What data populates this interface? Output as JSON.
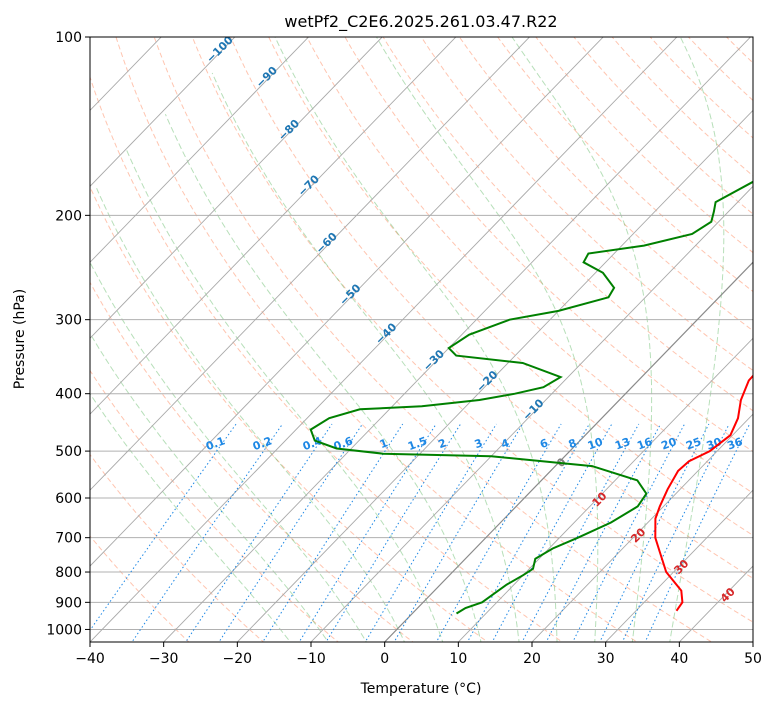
{
  "chart_data": {
    "type": "skew-t",
    "title": "wetPf2_C2E6.2025.261.03.47.R22",
    "xlabel": "Temperature (°C)",
    "ylabel": "Pressure (hPa)",
    "xlim": [
      -40,
      50
    ],
    "ylim": [
      1050,
      100
    ],
    "x_ticks": [
      -40,
      -30,
      -20,
      -10,
      0,
      10,
      20,
      30,
      40,
      50
    ],
    "x_tick_labels": [
      "−40",
      "−30",
      "−20",
      "−10",
      "0",
      "10",
      "20",
      "30",
      "40",
      "50"
    ],
    "y_ticks": [
      100,
      200,
      300,
      400,
      500,
      600,
      700,
      800,
      900,
      1000
    ],
    "y_tick_labels": [
      "100",
      "200",
      "300",
      "400",
      "500",
      "600",
      "700",
      "800",
      "900",
      "1000"
    ],
    "temperature_color": "#ff0000",
    "dewpoint_color": "#008000",
    "temperature": [
      {
        "p": 930,
        "t": 35.5
      },
      {
        "p": 900,
        "t": 35.2
      },
      {
        "p": 860,
        "t": 33.5
      },
      {
        "p": 800,
        "t": 29.0
      },
      {
        "p": 740,
        "t": 25.5
      },
      {
        "p": 700,
        "t": 23.0
      },
      {
        "p": 650,
        "t": 20.5
      },
      {
        "p": 620,
        "t": 19.5
      },
      {
        "p": 580,
        "t": 18.3
      },
      {
        "p": 540,
        "t": 17.3
      },
      {
        "p": 520,
        "t": 17.5
      },
      {
        "p": 500,
        "t": 19.0
      },
      {
        "p": 470,
        "t": 19.7
      },
      {
        "p": 440,
        "t": 18.5
      },
      {
        "p": 410,
        "t": 16.5
      },
      {
        "p": 380,
        "t": 15.0
      },
      {
        "p": 350,
        "t": 14.8
      },
      {
        "p": 320,
        "t": 14.0
      },
      {
        "p": 300,
        "t": 12.0
      },
      {
        "p": 270,
        "t": 10.5
      },
      {
        "p": 240,
        "t": 9.5
      },
      {
        "p": 220,
        "t": 8.0
      },
      {
        "p": 200,
        "t": 5.5
      },
      {
        "p": 180,
        "t": 4.5
      },
      {
        "p": 160,
        "t": 2.5
      },
      {
        "p": 140,
        "t": 0.0
      },
      {
        "p": 125,
        "t": -0.5
      },
      {
        "p": 110,
        "t": 1.5
      },
      {
        "p": 100,
        "t": 3.5
      }
    ],
    "dewpoint": [
      {
        "p": 940,
        "t": 6.0
      },
      {
        "p": 920,
        "t": 6.5
      },
      {
        "p": 900,
        "t": 8.0
      },
      {
        "p": 870,
        "t": 8.5
      },
      {
        "p": 840,
        "t": 9.0
      },
      {
        "p": 810,
        "t": 10.0
      },
      {
        "p": 790,
        "t": 10.5
      },
      {
        "p": 760,
        "t": 9.5
      },
      {
        "p": 730,
        "t": 10.5
      },
      {
        "p": 700,
        "t": 12.5
      },
      {
        "p": 660,
        "t": 15.0
      },
      {
        "p": 620,
        "t": 16.5
      },
      {
        "p": 590,
        "t": 16.0
      },
      {
        "p": 560,
        "t": 13.0
      },
      {
        "p": 530,
        "t": 5.0
      },
      {
        "p": 510,
        "t": -10.0
      },
      {
        "p": 505,
        "t": -25.0
      },
      {
        "p": 495,
        "t": -32.0
      },
      {
        "p": 480,
        "t": -36.0
      },
      {
        "p": 460,
        "t": -38.0
      },
      {
        "p": 440,
        "t": -37.0
      },
      {
        "p": 425,
        "t": -34.0
      },
      {
        "p": 420,
        "t": -26.0
      },
      {
        "p": 410,
        "t": -19.0
      },
      {
        "p": 400,
        "t": -15.0
      },
      {
        "p": 390,
        "t": -12.0
      },
      {
        "p": 375,
        "t": -11.0
      },
      {
        "p": 355,
        "t": -18.0
      },
      {
        "p": 345,
        "t": -28.0
      },
      {
        "p": 335,
        "t": -30.0
      },
      {
        "p": 318,
        "t": -29.0
      },
      {
        "p": 300,
        "t": -25.5
      },
      {
        "p": 290,
        "t": -20.0
      },
      {
        "p": 275,
        "t": -15.0
      },
      {
        "p": 265,
        "t": -15.5
      },
      {
        "p": 250,
        "t": -19.0
      },
      {
        "p": 240,
        "t": -23.0
      },
      {
        "p": 232,
        "t": -23.5
      },
      {
        "p": 225,
        "t": -17.0
      },
      {
        "p": 215,
        "t": -12.0
      },
      {
        "p": 205,
        "t": -11.0
      },
      {
        "p": 197,
        "t": -12.0
      },
      {
        "p": 190,
        "t": -13.0
      },
      {
        "p": 175,
        "t": -10.5
      },
      {
        "p": 160,
        "t": -8.0
      },
      {
        "p": 145,
        "t": -6.0
      },
      {
        "p": 130,
        "t": -4.0
      },
      {
        "p": 118,
        "t": -2.5
      },
      {
        "p": 108,
        "t": 0.0
      },
      {
        "p": 100,
        "t": 2.5
      }
    ],
    "isotherm_labels": [
      "−100",
      "−90",
      "−80",
      "−70",
      "−60",
      "−50",
      "−40",
      "−30",
      "−20",
      "−10"
    ],
    "isotherm_label_values": [
      -100,
      -90,
      -80,
      -70,
      -60,
      -50,
      -40,
      -30,
      -20,
      -10
    ],
    "mixing_ratio_labels": [
      "0.1",
      "0.2",
      "0.4",
      "0.6",
      "1",
      "1.5",
      "2",
      "3",
      "4",
      "6",
      "8",
      "10",
      "13",
      "16",
      "20",
      "25",
      "30",
      "36"
    ],
    "mixing_ratio_values": [
      0.1,
      0.2,
      0.4,
      0.6,
      1,
      1.5,
      2,
      3,
      4,
      6,
      8,
      10,
      13,
      16,
      20,
      25,
      30,
      36
    ],
    "mixing_ratio_label_pressure": 500,
    "isotherm_labels_warm": [
      "0",
      "10",
      "20",
      "30",
      "40"
    ],
    "isotherm_values_warm": [
      0,
      10,
      20,
      30,
      40
    ],
    "isotherm_label_color_cold": "#1f77b4",
    "isotherm_label_color_warm": "#d62728",
    "mixing_ratio_color": "#1e88e5",
    "zero_isotherm_color": "#808080"
  }
}
